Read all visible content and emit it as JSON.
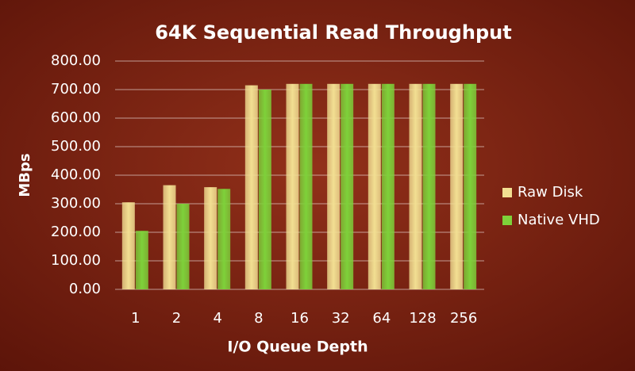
{
  "chart_data": {
    "type": "bar",
    "title": "64K Sequential Read Throughput",
    "x_label": "I/O Queue Depth",
    "y_label": "MBps",
    "categories": [
      "1",
      "2",
      "4",
      "8",
      "16",
      "32",
      "64",
      "128",
      "256"
    ],
    "series": [
      {
        "name": "Raw Disk",
        "color": "#f2df92",
        "values": [
          305,
          365,
          358,
          715,
          720,
          720,
          720,
          720,
          720
        ]
      },
      {
        "name": "Native VHD",
        "color": "#7ed13a",
        "values": [
          205,
          300,
          352,
          700,
          720,
          720,
          720,
          720,
          720
        ]
      }
    ],
    "ylim": [
      0,
      800
    ],
    "yticks": [
      {
        "value": 0,
        "label": "0.00"
      },
      {
        "value": 100,
        "label": "100.00"
      },
      {
        "value": 200,
        "label": "200.00"
      },
      {
        "value": 300,
        "label": "300.00"
      },
      {
        "value": 400,
        "label": "400.00"
      },
      {
        "value": 500,
        "label": "500.00"
      },
      {
        "value": 600,
        "label": "600.00"
      },
      {
        "value": 700,
        "label": "700.00"
      },
      {
        "value": 800,
        "label": "800.00"
      }
    ],
    "grid": true,
    "legend": "right"
  }
}
